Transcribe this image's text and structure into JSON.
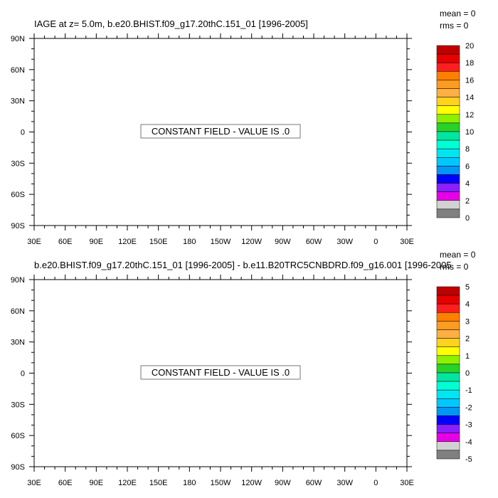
{
  "panels": [
    {
      "title": "IAGE at z=   5.0m, b.e20.BHIST.f09_g17.20thC.151_01 [1996-2005]",
      "stats": {
        "mean": "mean = 0",
        "rms": "rms = 0"
      },
      "message": "CONSTANT FIELD - VALUE IS .0",
      "colorbar": {
        "labels": [
          "20",
          "18",
          "16",
          "14",
          "12",
          "10",
          "8",
          "6",
          "4",
          "2",
          "0"
        ],
        "colors": [
          "#c00000",
          "#e60000",
          "#ff1e1e",
          "#ff7f00",
          "#ff9b1e",
          "#ffb040",
          "#ffd21e",
          "#ffff00",
          "#8cf000",
          "#28d228",
          "#00e6a0",
          "#00ffd2",
          "#00e6f0",
          "#00c8ff",
          "#0096f5",
          "#0000ff",
          "#8c1eff",
          "#e600e6",
          "#d2d2d2",
          "#808080"
        ]
      }
    },
    {
      "title": "b.e20.BHIST.f09_g17.20thC.151_01 [1996-2005] - b.e11.B20TRC5CNBDRD.f09_g16.001 [1996-2005",
      "stats": {
        "mean": "mean = 0",
        "rms": "rms = 0"
      },
      "message": "CONSTANT FIELD - VALUE IS .0",
      "colorbar": {
        "labels": [
          "5",
          "4",
          "3",
          "2",
          "1",
          "0",
          "-1",
          "-2",
          "-3",
          "-4",
          "-5"
        ],
        "colors": [
          "#c00000",
          "#e60000",
          "#ff1e1e",
          "#ff7f00",
          "#ff9b1e",
          "#ffb040",
          "#ffd21e",
          "#ffff00",
          "#8cf000",
          "#28d228",
          "#00e6a0",
          "#00ffd2",
          "#00e6f0",
          "#00c8ff",
          "#0096f5",
          "#0000ff",
          "#8c1eff",
          "#e600e6",
          "#d2d2d2",
          "#808080"
        ]
      }
    }
  ],
  "axes": {
    "x_ticks": [
      "30E",
      "60E",
      "90E",
      "120E",
      "150E",
      "180",
      "150W",
      "120W",
      "90W",
      "60W",
      "30W",
      "0",
      "30E"
    ],
    "y_ticks": [
      "90N",
      "60N",
      "30N",
      "0",
      "30S",
      "60S",
      "90S"
    ]
  },
  "chart_data": [
    {
      "type": "heatmap",
      "title": "IAGE at z=   5.0m, b.e20.BHIST.f09_g17.20thC.151_01 [1996-2005]",
      "xlabel": "",
      "ylabel": "",
      "xlim": [
        30,
        390
      ],
      "ylim": [
        -90,
        90
      ],
      "constant_value": 0,
      "mean": 0,
      "rms": 0,
      "colorbar_levels": [
        0,
        1,
        2,
        3,
        4,
        5,
        6,
        7,
        8,
        9,
        10,
        11,
        12,
        13,
        14,
        15,
        16,
        17,
        18,
        19,
        20
      ]
    },
    {
      "type": "heatmap",
      "title": "b.e20.BHIST.f09_g17.20thC.151_01 [1996-2005] - b.e11.B20TRC5CNBDRD.f09_g16.001 [1996-2005",
      "xlabel": "",
      "ylabel": "",
      "xlim": [
        30,
        390
      ],
      "ylim": [
        -90,
        90
      ],
      "constant_value": 0,
      "mean": 0,
      "rms": 0,
      "colorbar_levels": [
        -5,
        -4.5,
        -4,
        -3.5,
        -3,
        -2.5,
        -2,
        -1.5,
        -1,
        -0.5,
        0,
        0.5,
        1,
        1.5,
        2,
        2.5,
        3,
        3.5,
        4,
        4.5,
        5
      ]
    }
  ]
}
